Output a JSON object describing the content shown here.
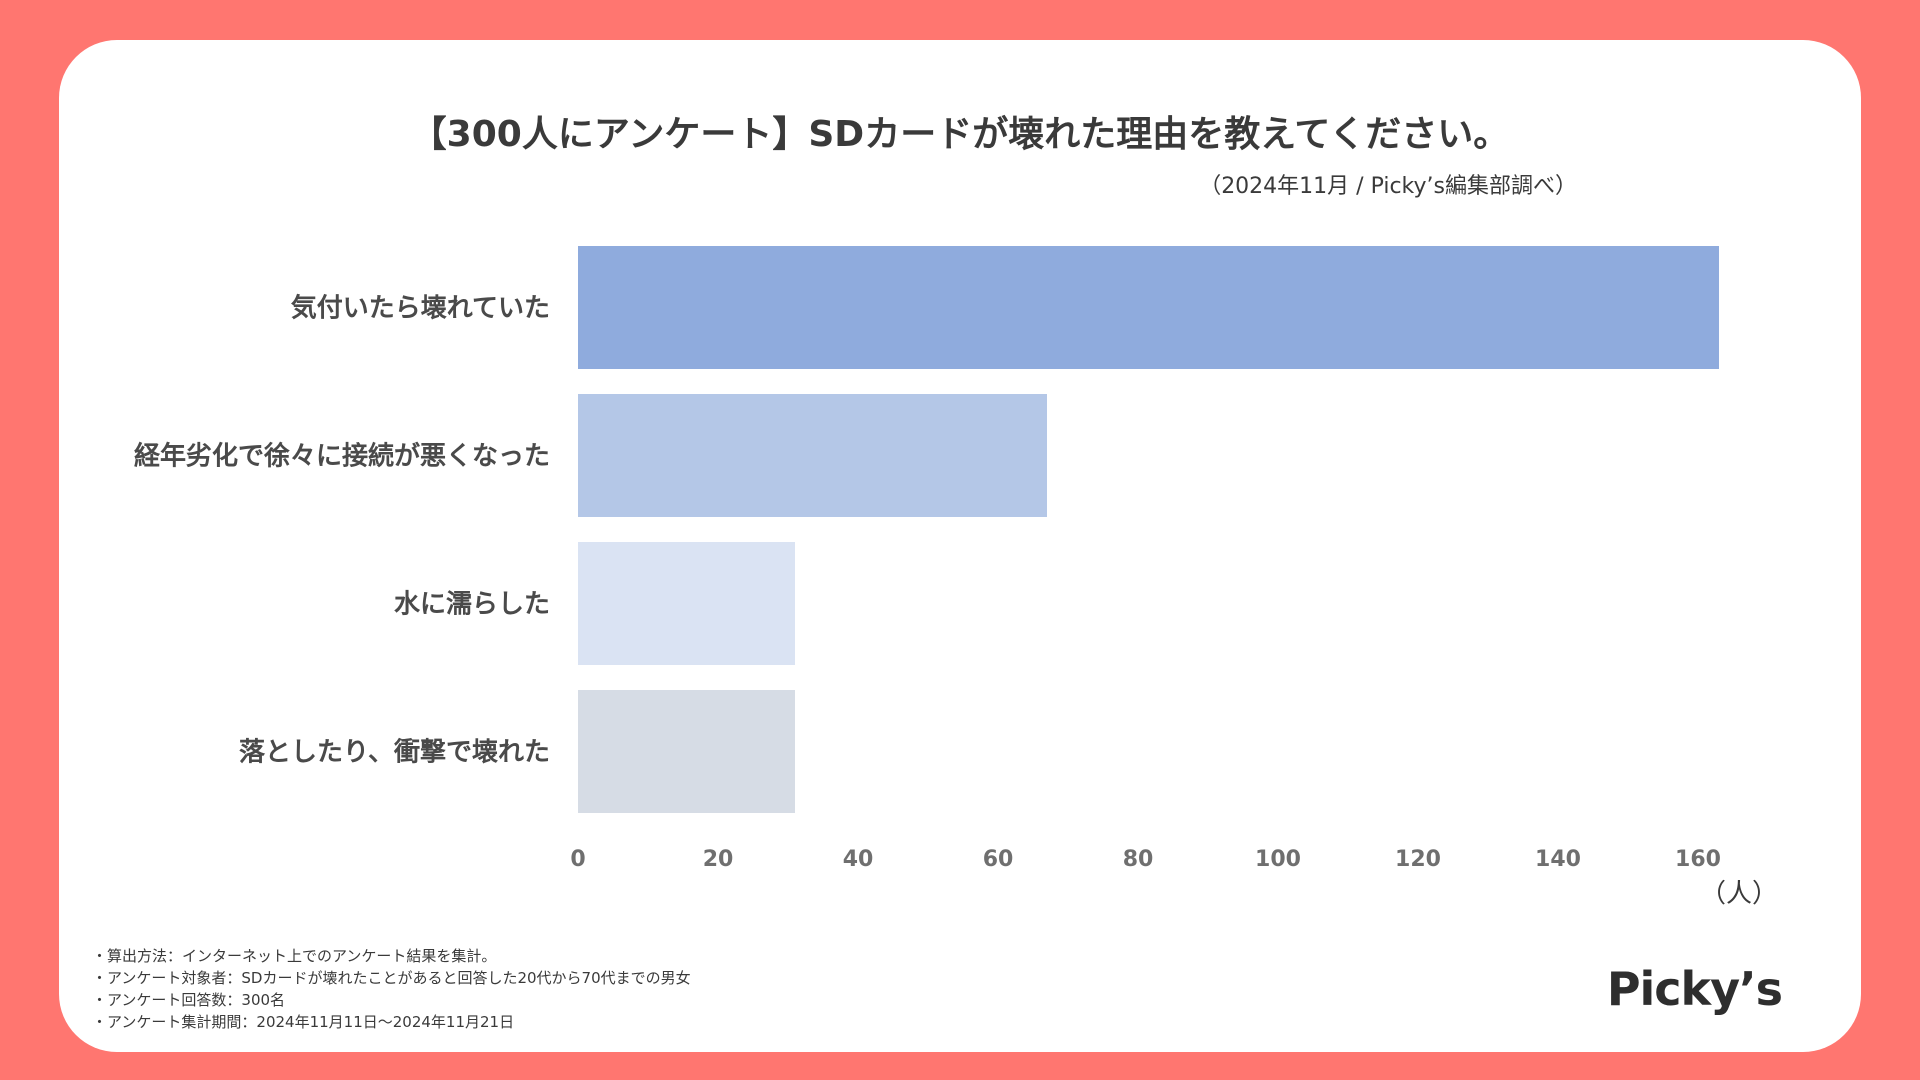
{
  "title": "【300人にアンケート】SDカードが壊れた理由を教えてください。",
  "source": "（2024年11月 / Picky’s編集部調べ）",
  "brand": "Picky’s",
  "notes": [
    "・算出方法：インターネット上でのアンケート結果を集計。",
    "・アンケート対象者：SDカードが壊れたことがあると回答した20代から70代までの男女",
    "・アンケート回答数：300名",
    "・アンケート集計期間：2024年11月11日〜2024年11月21日"
  ],
  "chart_data": {
    "type": "bar",
    "orientation": "horizontal",
    "title": "【300人にアンケート】SDカードが壊れた理由を教えてください。",
    "categories": [
      "気付いたら壊れていた",
      "経年劣化で徐々に接続が悪くなった",
      "水に濡らした",
      "落としたり、衝撃で壊れた"
    ],
    "values": [
      163,
      67,
      31,
      31
    ],
    "colors": [
      "#8FABDD",
      "#B4C7E7",
      "#DAE3F3",
      "#D6DCE5"
    ],
    "xlim": [
      0,
      170
    ],
    "xticks": [
      0,
      20,
      40,
      60,
      80,
      100,
      120,
      140,
      160
    ],
    "xlabel": "（人）",
    "ylabel": "",
    "grid": false,
    "legend": "none"
  }
}
